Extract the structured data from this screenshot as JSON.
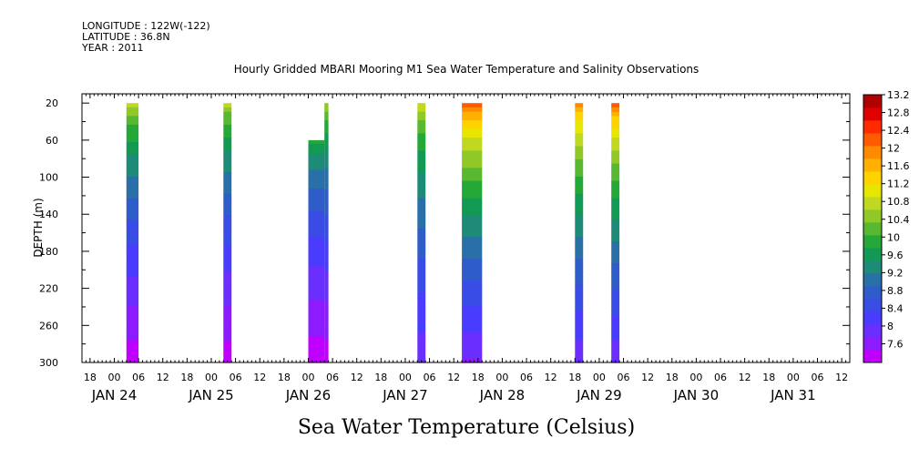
{
  "header": {
    "longitude": "LONGITUDE : 122W(-122)",
    "latitude": "LATITUDE : 36.8N",
    "year": "YEAR : 2011"
  },
  "chart_data": {
    "type": "heatmap",
    "title": "Hourly Gridded MBARI Mooring M1 Sea Water Temperature and Salinity Observations",
    "xlabel": "",
    "ylabel": "DEPTH (m)",
    "colorbar_label": "Sea Water Temperature (Celsius)",
    "x_hour_ticks": [
      "18",
      "00",
      "06",
      "12",
      "18",
      "00",
      "06",
      "12",
      "18",
      "00",
      "06",
      "12",
      "18",
      "00",
      "06",
      "12",
      "18",
      "00",
      "06",
      "12",
      "18",
      "00",
      "06",
      "12",
      "18",
      "00",
      "06",
      "12",
      "18",
      "00",
      "06",
      "12"
    ],
    "x_day_labels": [
      "JAN 24",
      "JAN 25",
      "JAN 26",
      "JAN 27",
      "JAN 28",
      "JAN 29",
      "JAN 30",
      "JAN 31"
    ],
    "x_range_hours_from_jan24_00": [
      -8,
      182
    ],
    "y_ticks": [
      20,
      60,
      100,
      140,
      180,
      220,
      260,
      300
    ],
    "ylim": [
      300,
      10
    ],
    "colorbar_ticks": [
      "7.6",
      "8",
      "8.4",
      "8.8",
      "9.2",
      "9.6",
      "10",
      "10.4",
      "10.8",
      "11.2",
      "11.6",
      "12",
      "12.4",
      "12.8",
      "13.2"
    ],
    "colorbar_range": [
      7.6,
      13.2
    ],
    "color_levels": [
      "#c000ff",
      "#8c1cff",
      "#6a2eff",
      "#4a3cff",
      "#3a4ce6",
      "#2e5cc8",
      "#2a70a8",
      "#1e8a78",
      "#129a55",
      "#25a838",
      "#58b830",
      "#90c828",
      "#c0d820",
      "#e6e600",
      "#ffd200",
      "#ffb000",
      "#ff8a00",
      "#ff5a00",
      "#ff2a00",
      "#e00000",
      "#b00000"
    ],
    "profiles": [
      {
        "start": "Jan 24 03:00",
        "end": "Jan 24 06:00",
        "top_depth": 20,
        "surface_temp": 11.2,
        "bottom_temp": 7.7
      },
      {
        "start": "Jan 25 03:00",
        "end": "Jan 25 05:00",
        "top_depth": 20,
        "surface_temp": 11.1,
        "bottom_temp": 7.7
      },
      {
        "start": "Jan 26 00:00",
        "end": "Jan 26 04:00",
        "top_depth": 60,
        "surface_temp": 10.3,
        "bottom_temp": 7.7
      },
      {
        "start": "Jan 26 04:00",
        "end": "Jan 26 05:00",
        "top_depth": 20,
        "surface_temp": 11.0,
        "bottom_temp": 7.7
      },
      {
        "start": "Jan 27 03:00",
        "end": "Jan 27 05:00",
        "top_depth": 20,
        "surface_temp": 11.2,
        "bottom_temp": 8.2
      },
      {
        "start": "Jan 27 14:00",
        "end": "Jan 27 19:00",
        "top_depth": 20,
        "surface_temp": 12.6,
        "bottom_temp": 8.1
      },
      {
        "start": "Jan 28 18:00",
        "end": "Jan 28 20:00",
        "top_depth": 20,
        "surface_temp": 12.3,
        "bottom_temp": 8.2
      },
      {
        "start": "Jan 29 03:00",
        "end": "Jan 29 05:00",
        "top_depth": 20,
        "surface_temp": 12.5,
        "bottom_temp": 8.2
      }
    ]
  }
}
